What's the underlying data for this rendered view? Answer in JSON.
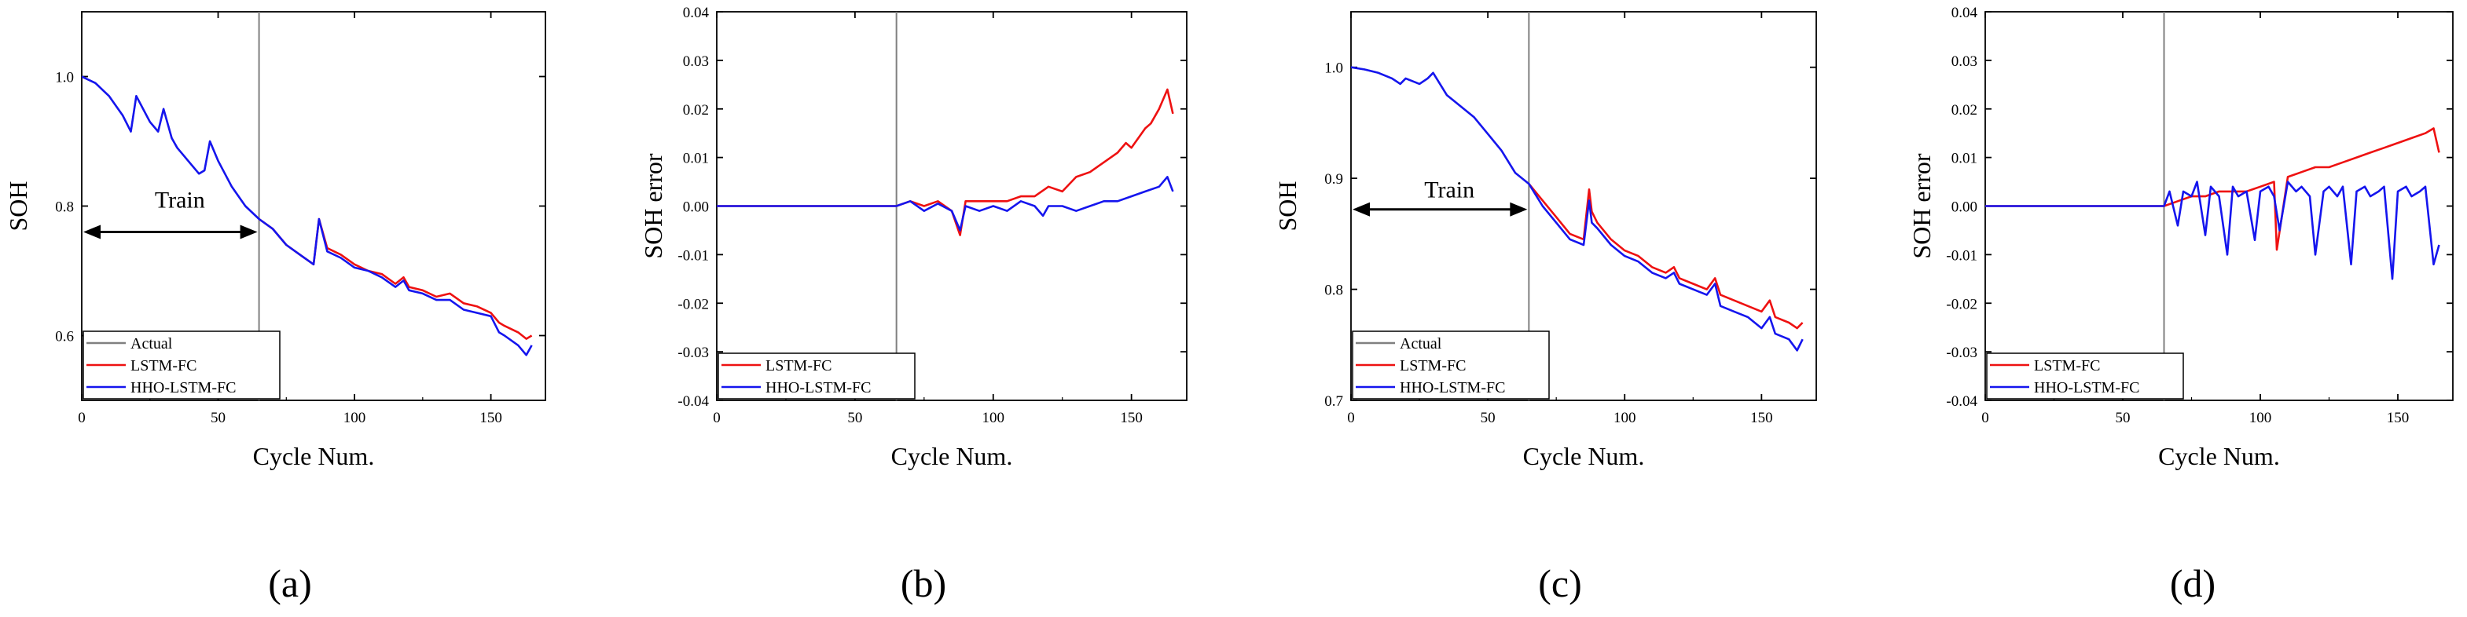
{
  "colors": {
    "actual": "#808080",
    "lstm": "#ee1111",
    "hho": "#1515ee",
    "split_line": "#808080"
  },
  "chart_data": [
    {
      "panel_label": "(a)",
      "type": "line",
      "xlabel": "Cycle Num.",
      "ylabel": "SOH",
      "xlim": [
        0,
        170
      ],
      "ylim": [
        0.5,
        1.1
      ],
      "xticks": [
        0,
        50,
        100,
        150
      ],
      "xtick_labels": [
        "0",
        "50",
        "100",
        "150"
      ],
      "yticks": [
        0.6,
        0.8,
        1.0
      ],
      "ytick_labels": [
        "0.6",
        "0.8",
        "1.0"
      ],
      "split_x": 65,
      "train_label": "Train",
      "train_arrow_y": 0.76,
      "train_text_y": 0.81,
      "legend": [
        "Actual",
        "LSTM-FC",
        "HHO-LSTM-FC"
      ],
      "series": [
        {
          "name": "Actual",
          "color_key": "actual",
          "x": [
            0,
            5,
            10,
            15,
            18,
            20,
            25,
            28,
            30,
            33,
            35,
            40,
            43,
            45,
            47,
            50,
            55,
            60,
            65
          ],
          "y": [
            1.0,
            0.99,
            0.97,
            0.94,
            0.915,
            0.97,
            0.93,
            0.915,
            0.95,
            0.905,
            0.89,
            0.865,
            0.85,
            0.855,
            0.9,
            0.87,
            0.83,
            0.8,
            0.78
          ]
        },
        {
          "name": "LSTM-FC",
          "color_key": "lstm",
          "x": [
            65,
            70,
            75,
            80,
            85,
            87,
            90,
            95,
            100,
            105,
            110,
            115,
            118,
            120,
            125,
            130,
            135,
            140,
            145,
            150,
            153,
            155,
            160,
            163,
            165
          ],
          "y": [
            0.78,
            0.765,
            0.74,
            0.725,
            0.71,
            0.78,
            0.735,
            0.725,
            0.71,
            0.7,
            0.695,
            0.68,
            0.69,
            0.675,
            0.67,
            0.66,
            0.665,
            0.65,
            0.645,
            0.635,
            0.62,
            0.615,
            0.605,
            0.595,
            0.6
          ]
        },
        {
          "name": "HHO-LSTM-FC",
          "color_key": "hho",
          "x": [
            0,
            5,
            10,
            15,
            18,
            20,
            25,
            28,
            30,
            33,
            35,
            40,
            43,
            45,
            47,
            50,
            55,
            60,
            65,
            70,
            75,
            80,
            85,
            87,
            90,
            95,
            100,
            105,
            110,
            115,
            118,
            120,
            125,
            130,
            135,
            140,
            145,
            150,
            153,
            155,
            160,
            163,
            165
          ],
          "y": [
            1.0,
            0.99,
            0.97,
            0.94,
            0.915,
            0.97,
            0.93,
            0.915,
            0.95,
            0.905,
            0.89,
            0.865,
            0.85,
            0.855,
            0.9,
            0.87,
            0.83,
            0.8,
            0.78,
            0.765,
            0.74,
            0.725,
            0.71,
            0.78,
            0.73,
            0.72,
            0.705,
            0.7,
            0.69,
            0.675,
            0.685,
            0.67,
            0.665,
            0.655,
            0.655,
            0.64,
            0.635,
            0.63,
            0.605,
            0.6,
            0.585,
            0.57,
            0.585
          ]
        }
      ]
    },
    {
      "panel_label": "(b)",
      "type": "line",
      "xlabel": "Cycle Num.",
      "ylabel": "SOH error",
      "xlim": [
        0,
        170
      ],
      "ylim": [
        -0.04,
        0.04
      ],
      "xticks": [
        0,
        50,
        100,
        150
      ],
      "xtick_labels": [
        "0",
        "50",
        "100",
        "150"
      ],
      "yticks": [
        -0.04,
        -0.03,
        -0.02,
        -0.01,
        0.0,
        0.01,
        0.02,
        0.03,
        0.04
      ],
      "ytick_labels": [
        "-0.04",
        "-0.03",
        "-0.02",
        "-0.01",
        "0.00",
        "0.01",
        "0.02",
        "0.03",
        "0.04"
      ],
      "split_x": 65,
      "legend": [
        "LSTM-FC",
        "HHO-LSTM-FC"
      ],
      "series": [
        {
          "name": "LSTM-FC",
          "color_key": "lstm",
          "x": [
            0,
            65,
            70,
            75,
            80,
            85,
            88,
            90,
            95,
            100,
            105,
            110,
            115,
            120,
            125,
            130,
            135,
            140,
            145,
            148,
            150,
            155,
            157,
            160,
            163,
            165
          ],
          "y": [
            0,
            0,
            0.001,
            0,
            0.001,
            -0.001,
            -0.006,
            0.001,
            0.001,
            0.001,
            0.001,
            0.002,
            0.002,
            0.004,
            0.003,
            0.006,
            0.007,
            0.009,
            0.011,
            0.013,
            0.012,
            0.016,
            0.017,
            0.02,
            0.024,
            0.019
          ]
        },
        {
          "name": "HHO-LSTM-FC",
          "color_key": "hho",
          "x": [
            0,
            65,
            70,
            75,
            80,
            85,
            88,
            90,
            95,
            100,
            105,
            110,
            115,
            118,
            120,
            125,
            130,
            135,
            140,
            145,
            150,
            155,
            160,
            163,
            165
          ],
          "y": [
            0,
            0,
            0.001,
            -0.001,
            0.0005,
            -0.001,
            -0.005,
            0,
            -0.001,
            0,
            -0.001,
            0.001,
            0,
            -0.002,
            0,
            0,
            -0.001,
            0,
            0.001,
            0.001,
            0.002,
            0.003,
            0.004,
            0.006,
            0.003
          ]
        }
      ]
    },
    {
      "panel_label": "(c)",
      "type": "line",
      "xlabel": "Cycle Num.",
      "ylabel": "SOH",
      "xlim": [
        0,
        170
      ],
      "ylim": [
        0.7,
        1.05
      ],
      "xticks": [
        0,
        50,
        100,
        150
      ],
      "xtick_labels": [
        "0",
        "50",
        "100",
        "150"
      ],
      "yticks": [
        0.7,
        0.8,
        0.9,
        1.0
      ],
      "ytick_labels": [
        "0.7",
        "0.8",
        "0.9",
        "1.0"
      ],
      "split_x": 65,
      "train_label": "Train",
      "train_arrow_y": 0.872,
      "train_text_y": 0.89,
      "legend": [
        "Actual",
        "LSTM-FC",
        "HHO-LSTM-FC"
      ],
      "series": [
        {
          "name": "Actual",
          "color_key": "actual",
          "x": [
            0,
            5,
            10,
            15,
            18,
            20,
            25,
            28,
            30,
            35,
            40,
            45,
            50,
            55,
            60,
            65
          ],
          "y": [
            1.0,
            0.998,
            0.995,
            0.99,
            0.985,
            0.99,
            0.985,
            0.99,
            0.995,
            0.975,
            0.965,
            0.955,
            0.94,
            0.925,
            0.905,
            0.895
          ]
        },
        {
          "name": "LSTM-FC",
          "color_key": "lstm",
          "x": [
            65,
            70,
            75,
            80,
            85,
            87,
            88,
            90,
            95,
            100,
            105,
            110,
            115,
            118,
            120,
            125,
            130,
            133,
            135,
            140,
            145,
            150,
            153,
            155,
            160,
            163,
            165
          ],
          "y": [
            0.895,
            0.88,
            0.865,
            0.85,
            0.845,
            0.89,
            0.87,
            0.86,
            0.845,
            0.835,
            0.83,
            0.82,
            0.815,
            0.82,
            0.81,
            0.805,
            0.8,
            0.81,
            0.795,
            0.79,
            0.785,
            0.78,
            0.79,
            0.775,
            0.77,
            0.765,
            0.77
          ]
        },
        {
          "name": "HHO-LSTM-FC",
          "color_key": "hho",
          "x": [
            0,
            5,
            10,
            15,
            18,
            20,
            25,
            28,
            30,
            35,
            40,
            45,
            50,
            55,
            60,
            65,
            70,
            75,
            80,
            85,
            87,
            88,
            90,
            95,
            100,
            105,
            110,
            115,
            118,
            120,
            125,
            130,
            133,
            135,
            140,
            145,
            150,
            153,
            155,
            160,
            163,
            165
          ],
          "y": [
            1.0,
            0.998,
            0.995,
            0.99,
            0.985,
            0.99,
            0.985,
            0.99,
            0.995,
            0.975,
            0.965,
            0.955,
            0.94,
            0.925,
            0.905,
            0.895,
            0.875,
            0.86,
            0.845,
            0.84,
            0.88,
            0.86,
            0.855,
            0.84,
            0.83,
            0.825,
            0.815,
            0.81,
            0.815,
            0.805,
            0.8,
            0.795,
            0.805,
            0.785,
            0.78,
            0.775,
            0.765,
            0.775,
            0.76,
            0.755,
            0.745,
            0.755
          ]
        }
      ]
    },
    {
      "panel_label": "(d)",
      "type": "line",
      "xlabel": "Cycle Num.",
      "ylabel": "SOH error",
      "xlim": [
        0,
        170
      ],
      "ylim": [
        -0.04,
        0.04
      ],
      "xticks": [
        0,
        50,
        100,
        150
      ],
      "xtick_labels": [
        "0",
        "50",
        "100",
        "150"
      ],
      "yticks": [
        -0.04,
        -0.03,
        -0.02,
        -0.01,
        0.0,
        0.01,
        0.02,
        0.03,
        0.04
      ],
      "ytick_labels": [
        "-0.04",
        "-0.03",
        "-0.02",
        "-0.01",
        "0.00",
        "0.01",
        "0.02",
        "0.03",
        "0.04"
      ],
      "split_x": 65,
      "legend": [
        "LSTM-FC",
        "HHO-LSTM-FC"
      ],
      "series": [
        {
          "name": "LSTM-FC",
          "color_key": "lstm",
          "x": [
            0,
            65,
            70,
            75,
            80,
            85,
            90,
            95,
            100,
            105,
            106,
            110,
            115,
            120,
            125,
            130,
            135,
            140,
            145,
            150,
            155,
            160,
            163,
            165
          ],
          "y": [
            0,
            0,
            0.001,
            0.002,
            0.002,
            0.003,
            0.003,
            0.003,
            0.004,
            0.005,
            -0.009,
            0.006,
            0.007,
            0.008,
            0.008,
            0.009,
            0.01,
            0.011,
            0.012,
            0.013,
            0.014,
            0.015,
            0.016,
            0.011
          ]
        },
        {
          "name": "HHO-LSTM-FC",
          "color_key": "hho",
          "x": [
            0,
            65,
            67,
            70,
            72,
            75,
            77,
            80,
            82,
            85,
            88,
            90,
            92,
            95,
            98,
            100,
            103,
            105,
            107,
            110,
            113,
            115,
            118,
            120,
            123,
            125,
            128,
            130,
            133,
            135,
            138,
            140,
            143,
            145,
            148,
            150,
            153,
            155,
            158,
            160,
            163,
            165
          ],
          "y": [
            0,
            0,
            0.003,
            -0.004,
            0.003,
            0.002,
            0.005,
            -0.006,
            0.004,
            0.002,
            -0.01,
            0.004,
            0.002,
            0.003,
            -0.007,
            0.003,
            0.004,
            0.002,
            -0.005,
            0.005,
            0.003,
            0.004,
            0.002,
            -0.01,
            0.003,
            0.004,
            0.002,
            0.004,
            -0.012,
            0.003,
            0.004,
            0.002,
            0.003,
            0.004,
            -0.015,
            0.003,
            0.004,
            0.002,
            0.003,
            0.004,
            -0.012,
            -0.008
          ]
        }
      ]
    }
  ]
}
